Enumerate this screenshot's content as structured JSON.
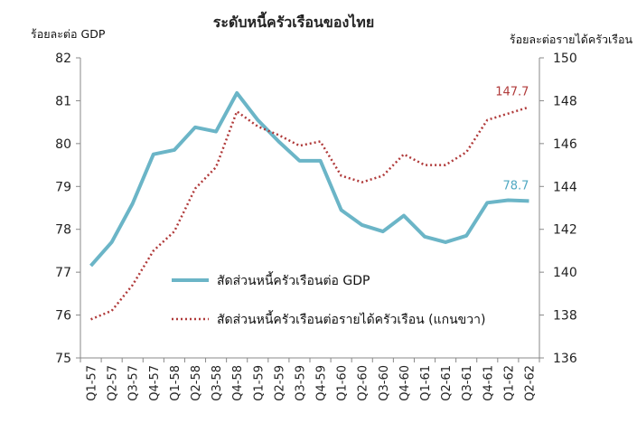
{
  "chart_data": {
    "type": "line",
    "title": "ระดับหนี้ครัวเรือนของไทย",
    "ylabel_left": "ร้อยละต่อ GDP",
    "ylabel_right": "ร้อยละต่อรายได้ครัวเรือน",
    "categories": [
      "Q1-57",
      "Q2-57",
      "Q3-57",
      "Q4-57",
      "Q1-58",
      "Q2-58",
      "Q3-58",
      "Q4-58",
      "Q1-59",
      "Q2-59",
      "Q3-59",
      "Q4-59",
      "Q1-60",
      "Q2-60",
      "Q3-60",
      "Q4-60",
      "Q1-61",
      "Q2-61",
      "Q3-61",
      "Q4-61",
      "Q1-62",
      "Q2-62"
    ],
    "ylim_left": [
      75,
      82
    ],
    "yticks_left": [
      "75",
      "76",
      "77",
      "78",
      "79",
      "80",
      "81",
      "82"
    ],
    "ylim_right": [
      136,
      150
    ],
    "yticks_right": [
      "136",
      "138",
      "140",
      "142",
      "144",
      "146",
      "148",
      "150"
    ],
    "series": [
      {
        "name": "สัดส่วนหนี้ครัวเรือนต่อ GDP",
        "axis": "left",
        "color": "#6BB5C7",
        "style": "solid",
        "values": [
          77.15,
          77.7,
          78.6,
          79.75,
          79.85,
          80.38,
          80.28,
          81.18,
          80.55,
          80.05,
          79.6,
          79.6,
          78.45,
          78.1,
          77.95,
          78.32,
          77.83,
          77.7,
          77.85,
          78.62,
          78.68,
          78.66
        ],
        "end_label": "78.7"
      },
      {
        "name": "สัดส่วนหนี้ครัวเรือนต่อรายได้ครัวเรือน (แกนขวา)",
        "axis": "right",
        "color": "#B03A3A",
        "style": "dotted",
        "values": [
          137.8,
          138.2,
          139.4,
          141.0,
          141.9,
          143.9,
          144.9,
          147.5,
          146.8,
          146.4,
          145.9,
          146.1,
          144.5,
          144.2,
          144.5,
          145.5,
          145.0,
          145.0,
          145.6,
          147.1,
          147.4,
          147.7
        ],
        "end_label": "147.7"
      }
    ],
    "legend_position": "lower-center",
    "grid": false
  }
}
